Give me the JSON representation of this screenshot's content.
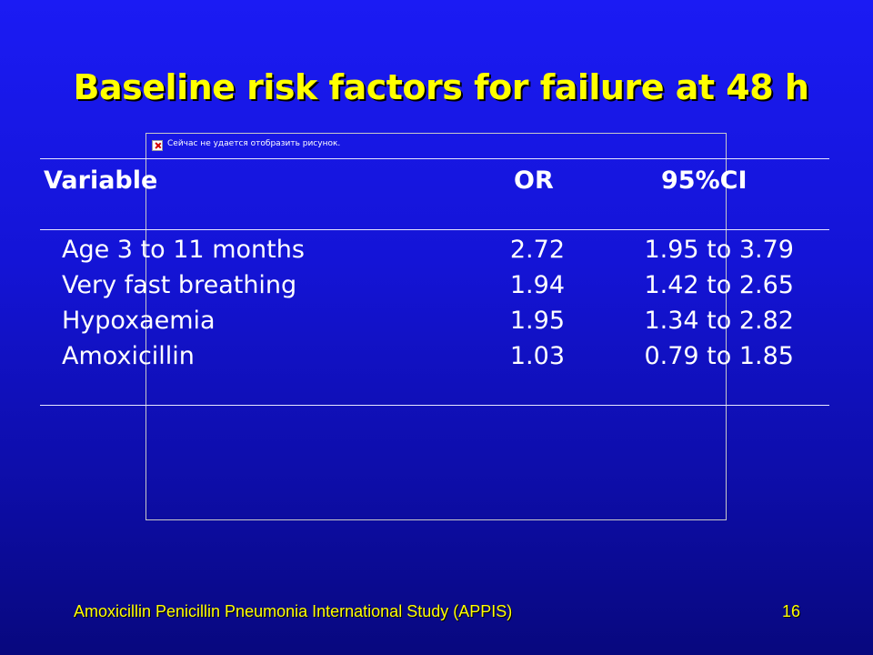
{
  "slide": {
    "title": "Baseline risk factors for failure at 48 h",
    "footer": "Amoxicillin Penicillin Pneumonia International Study (APPIS)",
    "page_number": "16",
    "colors": {
      "background_top": "#1b1bf4",
      "background_bottom": "#08087e",
      "title": "#ffff00",
      "text": "#ffffff",
      "footer": "#ffff00"
    }
  },
  "broken_image": {
    "icon": "broken-image-icon",
    "text": "Сейчас не удается отобразить рисунок."
  },
  "table": {
    "headers": {
      "variable": "Variable",
      "or": "OR",
      "ci": "95%CI"
    },
    "rows": [
      {
        "variable": "Age 3 to 11 months",
        "or": "2.72",
        "ci": "1.95 to 3.79"
      },
      {
        "variable": "Very fast breathing",
        "or": "1.94",
        "ci": "1.42 to 2.65"
      },
      {
        "variable": "Hypoxaemia",
        "or": "1.95",
        "ci": "1.34 to 2.82"
      },
      {
        "variable": "Amoxicillin",
        "or": "1.03",
        "ci": "0.79 to 1.85"
      }
    ]
  }
}
